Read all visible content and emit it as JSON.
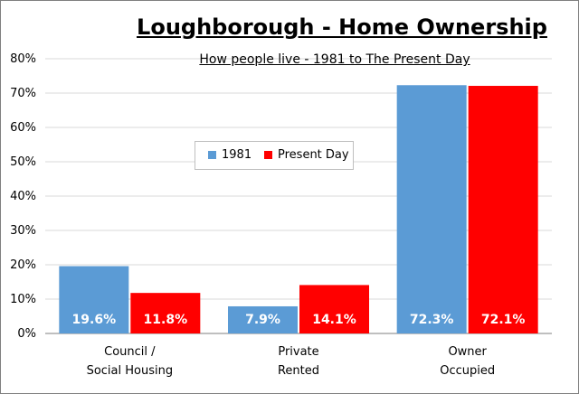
{
  "colors": {
    "series_1981": "#5b9bd5",
    "series_present": "#ff0000",
    "grid": "#d9d9d9",
    "axis": "#7f7f7f"
  },
  "chart_data": {
    "type": "bar",
    "title": "Loughborough - Home Ownership",
    "subtitle": "How people live - 1981 to The Present Day",
    "categories": [
      [
        "Council /",
        "Social Housing"
      ],
      [
        "Private",
        "Rented"
      ],
      [
        "Owner",
        "Occupied"
      ]
    ],
    "series": [
      {
        "name": "1981",
        "values": [
          19.6,
          7.9,
          72.3
        ],
        "labels": [
          "19.6%",
          "7.9%",
          "72.3%"
        ]
      },
      {
        "name": "Present Day",
        "values": [
          11.8,
          14.1,
          72.1
        ],
        "labels": [
          "11.8%",
          "14.1%",
          "72.1%"
        ]
      }
    ],
    "ylim": [
      0,
      80
    ],
    "yticks": [
      0,
      10,
      20,
      30,
      40,
      50,
      60,
      70,
      80
    ],
    "ytick_labels": [
      "0%",
      "10%",
      "20%",
      "30%",
      "40%",
      "50%",
      "60%",
      "70%",
      "80%"
    ],
    "grid": true,
    "legend_position": "center-left"
  }
}
